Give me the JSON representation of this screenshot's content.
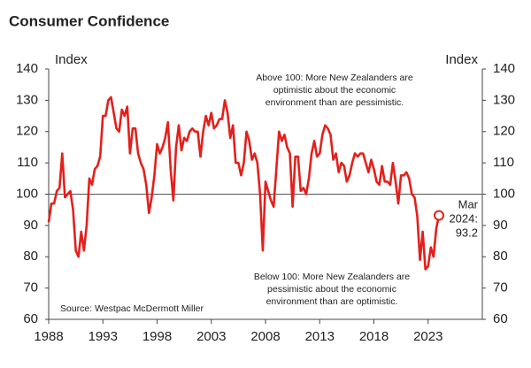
{
  "chart_data": {
    "type": "line",
    "title": "Consumer Confidence",
    "y_label": "Index",
    "y2_label": "Index",
    "color": "#e3201b",
    "reference_line": 100,
    "xlim": [
      1988,
      2028
    ],
    "xticks": [
      1988,
      1993,
      1998,
      2003,
      2008,
      2013,
      2018,
      2023
    ],
    "ylim": [
      60,
      140
    ],
    "yticks": [
      60,
      70,
      80,
      90,
      100,
      110,
      120,
      130,
      140
    ],
    "annotations": {
      "above": [
        "Above 100: More New Zealanders are",
        "optimistic about the economic",
        "environment than are pessimistic."
      ],
      "below": [
        "Below 100: More New Zealanders are",
        "pessimistic about the economic",
        "environment than are optimistic."
      ],
      "latest": [
        "Mar",
        "2024:"
      ],
      "source": "Source: Westpac McDermott Miller"
    },
    "x": [
      1988.0,
      1988.25,
      1988.5,
      1988.75,
      1989.0,
      1989.25,
      1989.5,
      1989.75,
      1990.0,
      1990.25,
      1990.5,
      1990.75,
      1991.0,
      1991.25,
      1991.5,
      1991.75,
      1992.0,
      1992.25,
      1992.5,
      1992.75,
      1993.0,
      1993.25,
      1993.5,
      1993.75,
      1994.0,
      1994.25,
      1994.5,
      1994.75,
      1995.0,
      1995.25,
      1995.5,
      1995.75,
      1996.0,
      1996.25,
      1996.5,
      1996.75,
      1997.0,
      1997.25,
      1997.5,
      1997.75,
      1998.0,
      1998.25,
      1998.5,
      1998.75,
      1999.0,
      1999.25,
      1999.5,
      1999.75,
      2000.0,
      2000.25,
      2000.5,
      2000.75,
      2001.0,
      2001.25,
      2001.5,
      2001.75,
      2002.0,
      2002.25,
      2002.5,
      2002.75,
      2003.0,
      2003.25,
      2003.5,
      2003.75,
      2004.0,
      2004.25,
      2004.5,
      2004.75,
      2005.0,
      2005.25,
      2005.5,
      2005.75,
      2006.0,
      2006.25,
      2006.5,
      2006.75,
      2007.0,
      2007.25,
      2007.5,
      2007.75,
      2008.0,
      2008.25,
      2008.5,
      2008.75,
      2009.0,
      2009.25,
      2009.5,
      2009.75,
      2010.0,
      2010.25,
      2010.5,
      2010.75,
      2011.0,
      2011.25,
      2011.5,
      2011.75,
      2012.0,
      2012.25,
      2012.5,
      2012.75,
      2013.0,
      2013.25,
      2013.5,
      2013.75,
      2014.0,
      2014.25,
      2014.5,
      2014.75,
      2015.0,
      2015.25,
      2015.5,
      2015.75,
      2016.0,
      2016.25,
      2016.5,
      2016.75,
      2017.0,
      2017.25,
      2017.5,
      2017.75,
      2018.0,
      2018.25,
      2018.5,
      2018.75,
      2019.0,
      2019.25,
      2019.5,
      2019.75,
      2020.0,
      2020.25,
      2020.5,
      2020.75,
      2021.0,
      2021.25,
      2021.5,
      2021.75,
      2022.0,
      2022.25,
      2022.5,
      2022.75,
      2023.0,
      2023.25,
      2023.5,
      2023.75,
      2024.0
    ],
    "values": [
      91,
      97,
      97,
      101,
      102,
      113,
      99,
      100,
      101,
      95,
      82,
      80,
      88,
      82,
      90,
      105,
      103,
      108,
      109,
      112,
      125,
      125,
      130,
      131,
      126,
      121,
      120,
      127,
      125,
      128,
      113,
      121,
      121,
      113,
      110,
      108,
      103,
      94,
      99,
      106,
      116,
      113,
      115,
      118,
      123,
      108,
      98,
      115,
      122,
      114,
      118,
      117,
      120,
      121,
      120,
      120,
      112,
      120,
      125,
      122,
      126,
      121,
      122,
      124,
      124,
      130,
      126,
      118,
      122,
      110,
      110,
      106,
      110,
      120,
      117,
      111,
      113,
      110,
      100,
      82,
      104,
      101,
      98,
      96,
      108,
      120,
      117,
      119,
      115,
      113,
      96,
      112,
      112,
      101,
      102,
      100,
      105,
      113,
      117,
      112,
      113,
      119,
      122,
      121,
      119,
      111,
      113,
      107,
      110,
      109,
      104,
      106,
      110,
      113,
      112,
      113,
      113,
      110,
      107,
      111,
      108,
      104,
      103,
      109,
      104,
      104,
      103,
      110,
      104,
      97,
      106,
      106,
      107,
      105,
      100,
      99,
      93,
      79,
      88,
      76,
      77,
      83,
      80,
      89,
      93.2
    ]
  }
}
